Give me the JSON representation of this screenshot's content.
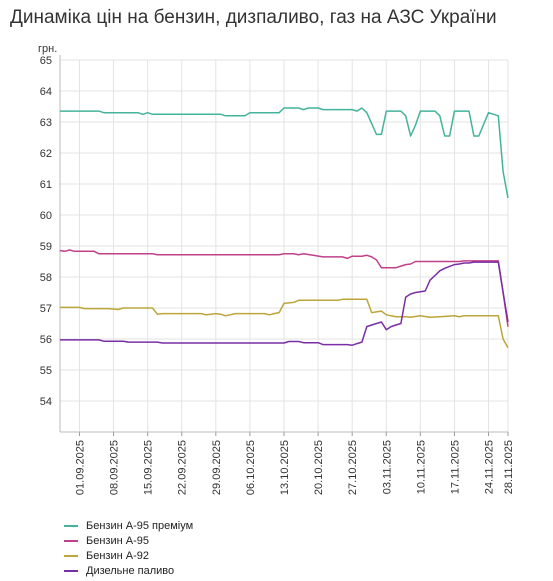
{
  "chart_data": {
    "type": "line",
    "title": "Динаміка цін на бензин, дизпаливо, газ на АЗС України",
    "ylabel": "грн.",
    "xlabel": "",
    "ylim": [
      53,
      65
    ],
    "yticks": [
      54,
      55,
      56,
      57,
      58,
      59,
      60,
      61,
      62,
      63,
      64,
      65
    ],
    "x_range": [
      "2025-08-28",
      "2025-11-28"
    ],
    "x_tick_labels": [
      "01.09.2025",
      "08.09.2025",
      "15.09.2025",
      "22.09.2025",
      "29.09.2025",
      "06.10.2025",
      "13.10.2025",
      "20.10.2025",
      "27.10.2025",
      "03.11.2025",
      "10.11.2025",
      "17.11.2025",
      "24.11.2025",
      "28.11.2025"
    ],
    "grid": true,
    "legend_position": "bottom-left",
    "series": [
      {
        "name": "Бензин А-95 преміум",
        "color": "#44b39b",
        "points": [
          [
            "2025-08-28",
            63.35
          ],
          [
            "2025-09-05",
            63.35
          ],
          [
            "2025-09-06",
            63.3
          ],
          [
            "2025-09-13",
            63.3
          ],
          [
            "2025-09-14",
            63.25
          ],
          [
            "2025-09-15",
            63.3
          ],
          [
            "2025-09-16",
            63.25
          ],
          [
            "2025-09-30",
            63.25
          ],
          [
            "2025-10-01",
            63.2
          ],
          [
            "2025-10-05",
            63.2
          ],
          [
            "2025-10-06",
            63.3
          ],
          [
            "2025-10-12",
            63.3
          ],
          [
            "2025-10-13",
            63.45
          ],
          [
            "2025-10-16",
            63.45
          ],
          [
            "2025-10-17",
            63.4
          ],
          [
            "2025-10-18",
            63.45
          ],
          [
            "2025-10-20",
            63.45
          ],
          [
            "2025-10-21",
            63.4
          ],
          [
            "2025-10-27",
            63.4
          ],
          [
            "2025-10-28",
            63.35
          ],
          [
            "2025-10-29",
            63.45
          ],
          [
            "2025-10-30",
            63.3
          ],
          [
            "2025-11-01",
            62.6
          ],
          [
            "2025-11-02",
            62.6
          ],
          [
            "2025-11-03",
            63.35
          ],
          [
            "2025-11-06",
            63.35
          ],
          [
            "2025-11-07",
            63.2
          ],
          [
            "2025-11-08",
            62.55
          ],
          [
            "2025-11-09",
            62.9
          ],
          [
            "2025-11-10",
            63.35
          ],
          [
            "2025-11-13",
            63.35
          ],
          [
            "2025-11-14",
            63.2
          ],
          [
            "2025-11-15",
            62.55
          ],
          [
            "2025-11-16",
            62.55
          ],
          [
            "2025-11-17",
            63.35
          ],
          [
            "2025-11-20",
            63.35
          ],
          [
            "2025-11-21",
            62.55
          ],
          [
            "2025-11-22",
            62.55
          ],
          [
            "2025-11-24",
            63.3
          ],
          [
            "2025-11-26",
            63.2
          ],
          [
            "2025-11-27",
            61.4
          ],
          [
            "2025-11-28",
            60.55
          ]
        ]
      },
      {
        "name": "Бензин А-95",
        "color": "#c0408a",
        "points": [
          [
            "2025-08-28",
            58.85
          ],
          [
            "2025-08-29",
            58.83
          ],
          [
            "2025-08-30",
            58.87
          ],
          [
            "2025-08-31",
            58.83
          ],
          [
            "2025-09-04",
            58.83
          ],
          [
            "2025-09-05",
            58.75
          ],
          [
            "2025-09-16",
            58.75
          ],
          [
            "2025-09-17",
            58.72
          ],
          [
            "2025-10-12",
            58.72
          ],
          [
            "2025-10-13",
            58.75
          ],
          [
            "2025-10-15",
            58.75
          ],
          [
            "2025-10-16",
            58.72
          ],
          [
            "2025-10-17",
            58.75
          ],
          [
            "2025-10-19",
            58.7
          ],
          [
            "2025-10-21",
            58.65
          ],
          [
            "2025-10-25",
            58.65
          ],
          [
            "2025-10-26",
            58.6
          ],
          [
            "2025-10-27",
            58.67
          ],
          [
            "2025-10-29",
            58.67
          ],
          [
            "2025-10-30",
            58.7
          ],
          [
            "2025-10-31",
            58.65
          ],
          [
            "2025-11-01",
            58.55
          ],
          [
            "2025-11-02",
            58.3
          ],
          [
            "2025-11-05",
            58.3
          ],
          [
            "2025-11-06",
            58.35
          ],
          [
            "2025-11-07",
            58.4
          ],
          [
            "2025-11-08",
            58.42
          ],
          [
            "2025-11-09",
            58.5
          ],
          [
            "2025-11-18",
            58.5
          ],
          [
            "2025-11-19",
            58.52
          ],
          [
            "2025-11-26",
            58.52
          ],
          [
            "2025-11-27",
            57.5
          ],
          [
            "2025-11-28",
            56.4
          ]
        ]
      },
      {
        "name": "Бензин А-92",
        "color": "#bca53a",
        "points": [
          [
            "2025-08-28",
            57.02
          ],
          [
            "2025-09-01",
            57.02
          ],
          [
            "2025-09-02",
            56.98
          ],
          [
            "2025-09-07",
            56.98
          ],
          [
            "2025-09-09",
            56.95
          ],
          [
            "2025-09-10",
            57.0
          ],
          [
            "2025-09-16",
            57.0
          ],
          [
            "2025-09-17",
            56.8
          ],
          [
            "2025-09-18",
            56.82
          ],
          [
            "2025-09-26",
            56.82
          ],
          [
            "2025-09-27",
            56.78
          ],
          [
            "2025-09-28",
            56.8
          ],
          [
            "2025-09-29",
            56.82
          ],
          [
            "2025-09-30",
            56.8
          ],
          [
            "2025-10-01",
            56.75
          ],
          [
            "2025-10-03",
            56.82
          ],
          [
            "2025-10-09",
            56.82
          ],
          [
            "2025-10-10",
            56.78
          ],
          [
            "2025-10-11",
            56.82
          ],
          [
            "2025-10-12",
            56.85
          ],
          [
            "2025-10-13",
            57.15
          ],
          [
            "2025-10-15",
            57.18
          ],
          [
            "2025-10-16",
            57.25
          ],
          [
            "2025-10-24",
            57.25
          ],
          [
            "2025-10-25",
            57.28
          ],
          [
            "2025-10-30",
            57.28
          ],
          [
            "2025-10-31",
            56.85
          ],
          [
            "2025-11-02",
            56.9
          ],
          [
            "2025-11-03",
            56.78
          ],
          [
            "2025-11-04",
            56.75
          ],
          [
            "2025-11-05",
            56.72
          ],
          [
            "2025-11-07",
            56.72
          ],
          [
            "2025-11-08",
            56.7
          ],
          [
            "2025-11-10",
            56.75
          ],
          [
            "2025-11-12",
            56.7
          ],
          [
            "2025-11-14",
            56.72
          ],
          [
            "2025-11-17",
            56.75
          ],
          [
            "2025-11-18",
            56.72
          ],
          [
            "2025-11-19",
            56.75
          ],
          [
            "2025-11-26",
            56.75
          ],
          [
            "2025-11-27",
            56.0
          ],
          [
            "2025-11-28",
            55.72
          ]
        ]
      },
      {
        "name": "Дизельне паливо",
        "color": "#7a2ea5",
        "points": [
          [
            "2025-08-28",
            55.97
          ],
          [
            "2025-09-05",
            55.97
          ],
          [
            "2025-09-06",
            55.93
          ],
          [
            "2025-09-10",
            55.93
          ],
          [
            "2025-09-11",
            55.9
          ],
          [
            "2025-09-17",
            55.9
          ],
          [
            "2025-09-18",
            55.87
          ],
          [
            "2025-10-13",
            55.87
          ],
          [
            "2025-10-14",
            55.92
          ],
          [
            "2025-10-16",
            55.92
          ],
          [
            "2025-10-17",
            55.88
          ],
          [
            "2025-10-20",
            55.88
          ],
          [
            "2025-10-21",
            55.82
          ],
          [
            "2025-10-26",
            55.82
          ],
          [
            "2025-10-27",
            55.8
          ],
          [
            "2025-10-28",
            55.85
          ],
          [
            "2025-10-29",
            55.9
          ],
          [
            "2025-10-30",
            56.4
          ],
          [
            "2025-10-31",
            56.45
          ],
          [
            "2025-11-01",
            56.5
          ],
          [
            "2025-11-02",
            56.55
          ],
          [
            "2025-11-03",
            56.3
          ],
          [
            "2025-11-04",
            56.4
          ],
          [
            "2025-11-05",
            56.45
          ],
          [
            "2025-11-06",
            56.5
          ],
          [
            "2025-11-07",
            57.35
          ],
          [
            "2025-11-08",
            57.45
          ],
          [
            "2025-11-09",
            57.5
          ],
          [
            "2025-11-11",
            57.55
          ],
          [
            "2025-11-12",
            57.9
          ],
          [
            "2025-11-13",
            58.05
          ],
          [
            "2025-11-14",
            58.2
          ],
          [
            "2025-11-15",
            58.28
          ],
          [
            "2025-11-17",
            58.4
          ],
          [
            "2025-11-18",
            58.42
          ],
          [
            "2025-11-19",
            58.45
          ],
          [
            "2025-11-20",
            58.45
          ],
          [
            "2025-11-21",
            58.48
          ],
          [
            "2025-11-26",
            58.48
          ],
          [
            "2025-11-27",
            57.5
          ],
          [
            "2025-11-28",
            56.55
          ]
        ]
      }
    ]
  }
}
